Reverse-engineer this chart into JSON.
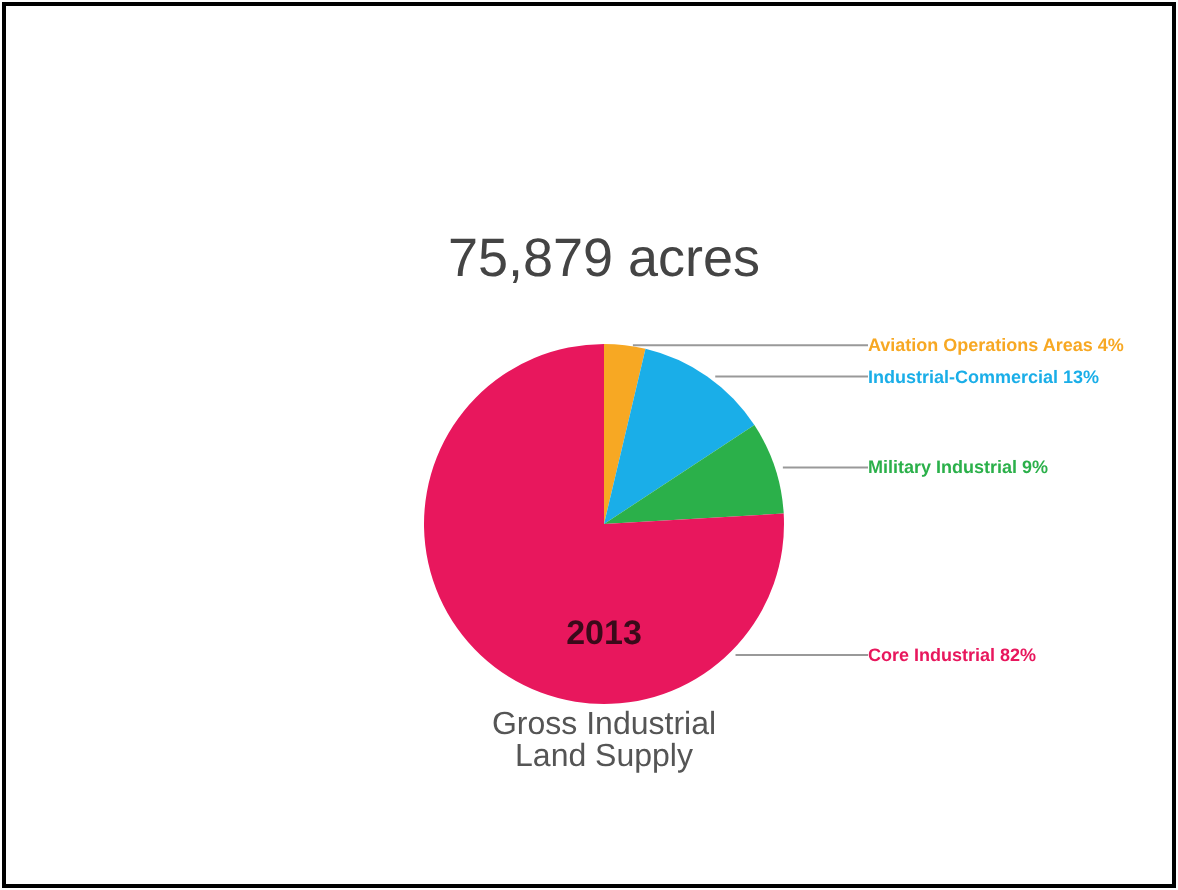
{
  "chart_data": {
    "type": "pie",
    "title": "75,879 acres",
    "categories": [
      "Aviation Operations Areas",
      "Industrial-Commercial",
      "Military Industrial",
      "Core Industrial"
    ],
    "values": [
      4,
      13,
      9,
      82
    ],
    "value_labels": [
      "4%",
      "13%",
      "9%",
      "82%"
    ],
    "colors": [
      "#f7a823",
      "#1aaee8",
      "#2bb04a",
      "#e8175d"
    ],
    "annotations": [
      "2013",
      "Gross Industrial\nLand Supply"
    ]
  }
}
